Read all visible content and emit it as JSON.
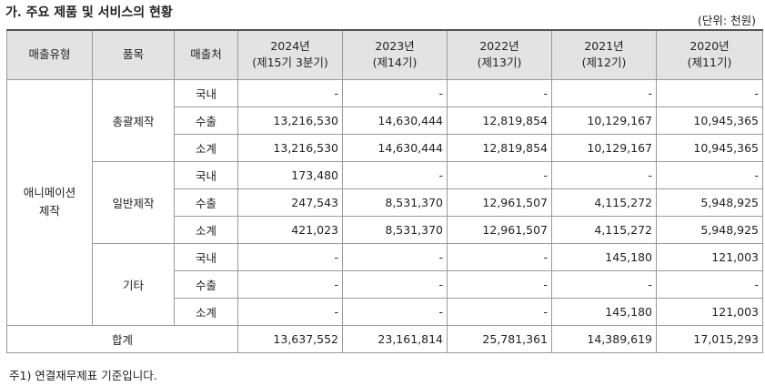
{
  "title": "가. 주요 제품 및 서비스의 현황",
  "unit": "(단위: 천원)",
  "headers": {
    "type": "매출유형",
    "item": "품목",
    "dest": "매출처",
    "years": [
      {
        "year": "2024년",
        "period": "(제15기 3분기)"
      },
      {
        "year": "2023년",
        "period": "(제14기)"
      },
      {
        "year": "2022년",
        "period": "(제13기)"
      },
      {
        "year": "2021년",
        "period": "(제12기)"
      },
      {
        "year": "2020년",
        "period": "(제11기)"
      }
    ]
  },
  "sales_type": "애니메이션\n제작",
  "groups": [
    {
      "item": "총괄제작",
      "rows": [
        {
          "dest": "국내",
          "values": [
            "-",
            "-",
            "-",
            "-",
            "-"
          ]
        },
        {
          "dest": "수출",
          "values": [
            "13,216,530",
            "14,630,444",
            "12,819,854",
            "10,129,167",
            "10,945,365"
          ]
        },
        {
          "dest": "소계",
          "values": [
            "13,216,530",
            "14,630,444",
            "12,819,854",
            "10,129,167",
            "10,945,365"
          ]
        }
      ]
    },
    {
      "item": "일반제작",
      "rows": [
        {
          "dest": "국내",
          "values": [
            "173,480",
            "-",
            "-",
            "-",
            "-"
          ]
        },
        {
          "dest": "수출",
          "values": [
            "247,543",
            "8,531,370",
            "12,961,507",
            "4,115,272",
            "5,948,925"
          ]
        },
        {
          "dest": "소계",
          "values": [
            "421,023",
            "8,531,370",
            "12,961,507",
            "4,115,272",
            "5,948,925"
          ]
        }
      ]
    },
    {
      "item": "기타",
      "rows": [
        {
          "dest": "국내",
          "values": [
            "-",
            "-",
            "-",
            "145,180",
            "121,003"
          ]
        },
        {
          "dest": "수출",
          "values": [
            "-",
            "-",
            "-",
            "-",
            "-"
          ]
        },
        {
          "dest": "소계",
          "values": [
            "-",
            "-",
            "-",
            "145,180",
            "121,003"
          ]
        }
      ]
    }
  ],
  "total": {
    "label": "합계",
    "values": [
      "13,637,552",
      "23,161,814",
      "25,781,361",
      "14,389,619",
      "17,015,293"
    ]
  },
  "note": "주1)  연결재무제표 기준입니다."
}
